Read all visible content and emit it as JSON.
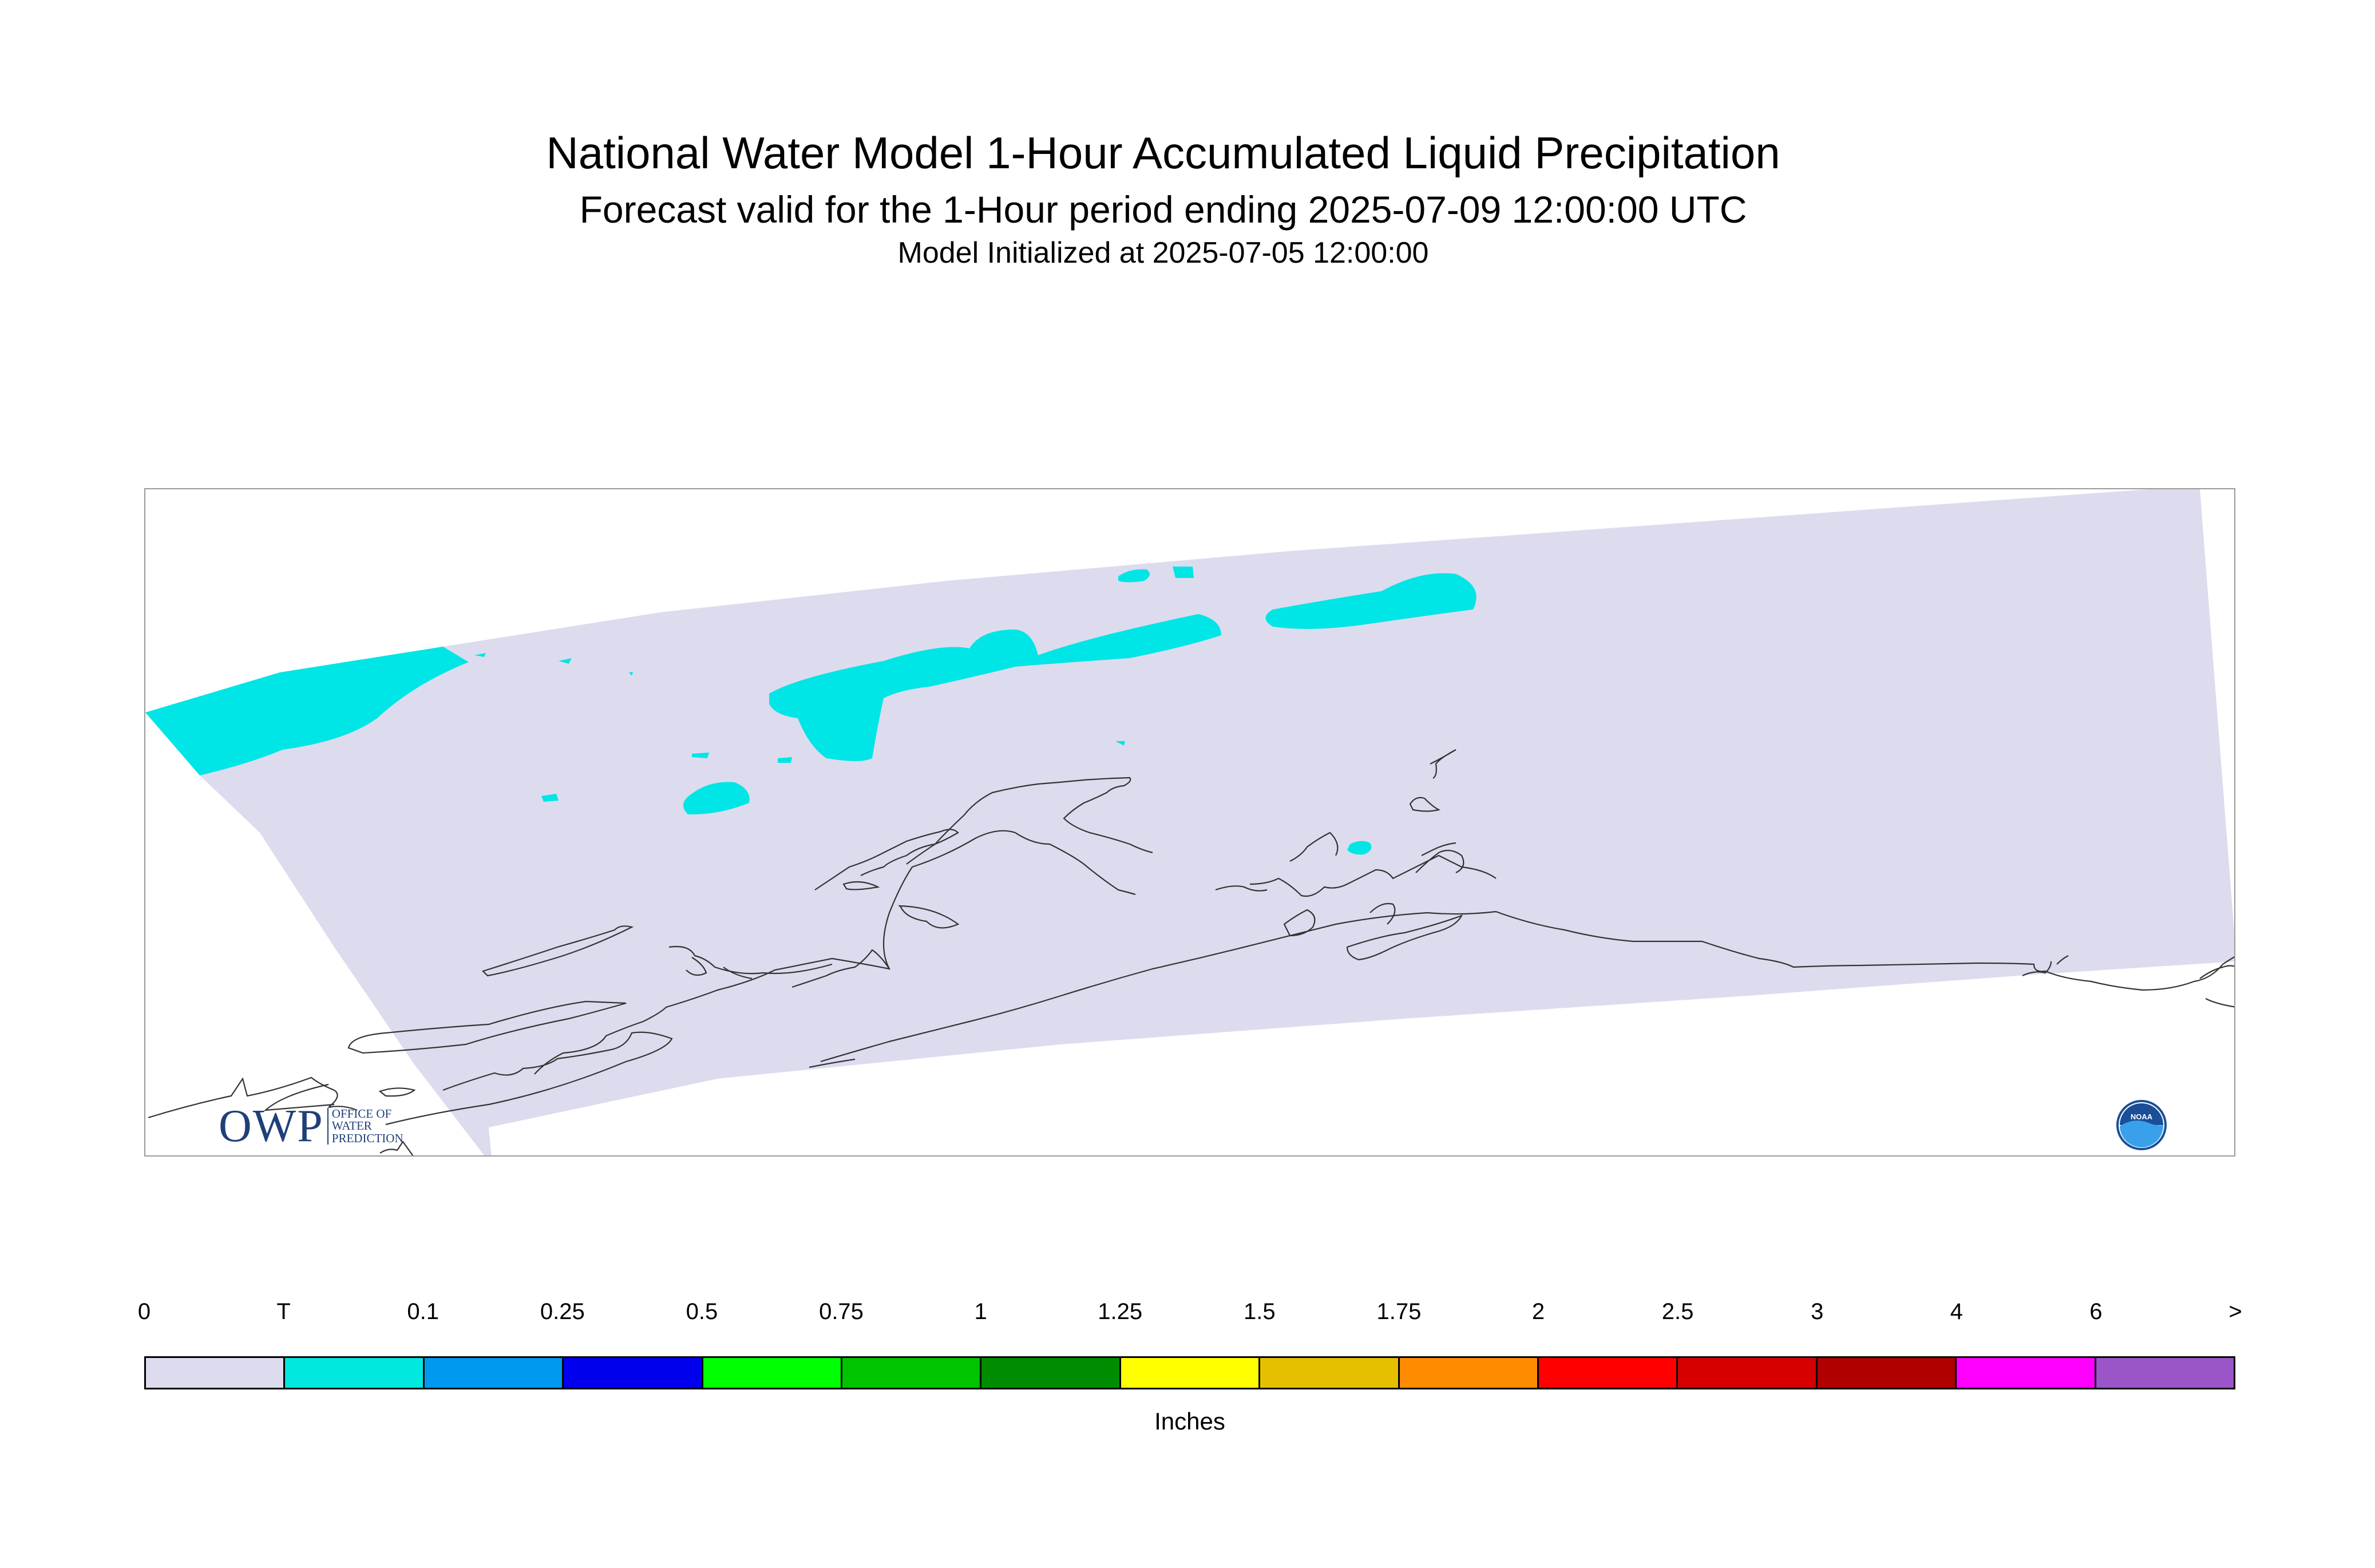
{
  "header": {
    "title": "National Water Model 1-Hour Accumulated Liquid Precipitation",
    "subtitle": "Forecast valid for the 1-Hour period ending 2025-07-09 12:00:00 UTC",
    "init_line": "Model Initialized at 2025-07-05 12:00:00"
  },
  "logos": {
    "owp_mark": "OWP",
    "owp_text": "OFFICE OF WATER PREDICTION",
    "noaa_text": "NOAA"
  },
  "colors": {
    "domain_zero": "#dcdcee",
    "trace": "#00e5e5",
    "coastline": "#333333"
  },
  "legend": {
    "labels": [
      "0",
      "T",
      "0.1",
      "0.25",
      "0.5",
      "0.75",
      "1",
      "1.25",
      "1.5",
      "1.75",
      "2",
      "2.5",
      "3",
      "4",
      "6",
      ">"
    ],
    "colors": [
      "#dcdcee",
      "#00e8e0",
      "#0099f0",
      "#0000ee",
      "#00ff00",
      "#00c400",
      "#008c00",
      "#ffff00",
      "#e6c000",
      "#ff8c00",
      "#ff0000",
      "#d60000",
      "#b00000",
      "#ff00ff",
      "#9a55c8"
    ],
    "units": "Inches"
  }
}
